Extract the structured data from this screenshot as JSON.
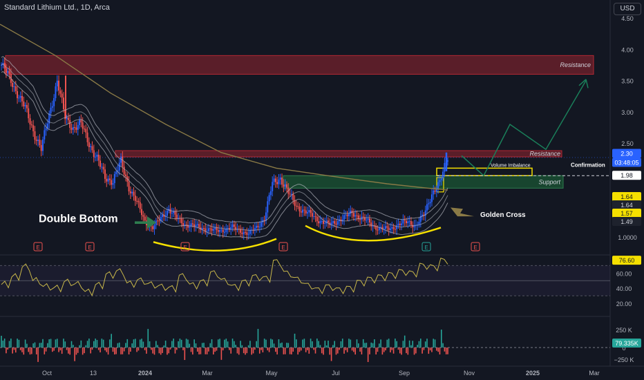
{
  "header": {
    "title": "Standard Lithium Ltd., 1D, Arca"
  },
  "currency": "USD",
  "price_axis": {
    "ticks": [
      "4.50",
      "4.00",
      "3.50",
      "3.00",
      "2.50",
      "2.00",
      "1.50",
      "1.0000"
    ],
    "values": [
      4.5,
      4.0,
      3.5,
      3.0,
      2.5,
      2.0,
      1.5,
      1.0
    ]
  },
  "price_labels": {
    "last": "2.30",
    "countdown": "03:48:05",
    "confirmation_value": "1.98",
    "ma_values": [
      "1.64",
      "1.64",
      "1.57",
      "1.49"
    ]
  },
  "rsi_axis": {
    "ticks": [
      "60.00",
      "40.00",
      "20.00"
    ],
    "values": [
      60,
      40,
      20
    ],
    "value_label": "76.60"
  },
  "volume_axis": {
    "ticks": [
      "250 K",
      "0",
      "−250 K"
    ],
    "value_label": "79.335K"
  },
  "x_axis": {
    "ticks": [
      "Oct",
      "13",
      "2024",
      "Mar",
      "May",
      "Jul",
      "Sep",
      "Nov",
      "2025",
      "Mar"
    ]
  },
  "annotations": {
    "resistance_top": "Resistance",
    "resistance_mid": "Resistance",
    "support": "Support",
    "volume_imbalance": "Volume Imbalance",
    "confirmation": "Confirmation",
    "double_bottom": "Double Bottom",
    "golden_cross": "Golden Cross",
    "earnings": "E"
  },
  "colors": {
    "bg": "#131722",
    "up": "#2962ff",
    "down": "#ef5350",
    "vol_up": "#26a69a",
    "vol_down": "#ef5350",
    "rsi": "#c9b84a",
    "ma_long": "#8a7a46",
    "ma_env": "#b2b5be",
    "resistance": "#b22833",
    "support": "#1e6b3b",
    "curve": "#f5e000",
    "arrow": "#1a7f5a"
  },
  "chart_data": {
    "type": "candlestick",
    "title": "Standard Lithium Ltd., 1D, Arca",
    "price_range": [
      0.75,
      4.6
    ],
    "weekly_close": [
      3.75,
      3.55,
      3.3,
      3.05,
      2.7,
      2.4,
      2.95,
      3.5,
      2.9,
      2.75,
      2.8,
      2.5,
      2.25,
      1.95,
      1.9,
      2.2,
      1.8,
      1.55,
      1.25,
      1.15,
      1.3,
      1.45,
      1.3,
      1.2,
      1.18,
      1.15,
      1.12,
      1.1,
      1.12,
      1.15,
      1.1,
      1.05,
      1.15,
      1.3,
      1.85,
      1.95,
      1.7,
      1.5,
      1.4,
      1.35,
      1.25,
      1.2,
      1.25,
      1.3,
      1.4,
      1.3,
      1.25,
      1.15,
      1.12,
      1.15,
      1.2,
      1.25,
      1.18,
      1.35,
      1.7,
      1.85,
      2.3
    ],
    "rsi_range": [
      10,
      85
    ],
    "rsi": [
      45,
      55,
      68,
      50,
      42,
      40,
      48,
      45,
      35,
      44,
      58,
      62,
      46,
      50,
      45,
      42,
      40,
      56,
      44,
      48,
      60,
      50,
      42,
      48,
      55,
      53,
      75,
      60,
      52,
      44,
      38,
      42,
      38,
      40,
      48,
      52,
      55,
      58,
      62,
      60,
      70,
      68,
      76.6
    ],
    "volume_range": [
      -300,
      300
    ],
    "levels": {
      "resistance_zone_top": [
        3.6,
        3.9
      ],
      "resistance_zone_mid": [
        2.28,
        2.38
      ],
      "support_zone": [
        1.78,
        1.98
      ],
      "volume_imbalance": [
        1.98,
        2.1
      ]
    }
  }
}
